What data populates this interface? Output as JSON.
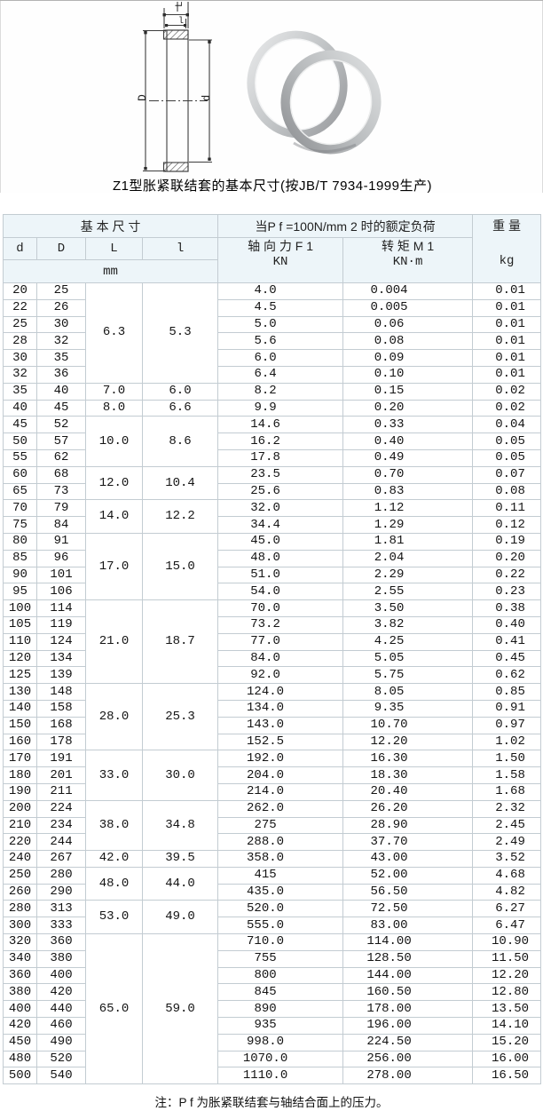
{
  "page": {
    "title": "Z1型胀紧联结套的基本尺寸(按JB/T 7934-1999生产)",
    "note": "注：P f 为胀紧联结套与轴结合面上的压力。"
  },
  "diagram": {
    "dim_L": "L",
    "dim_l": "l",
    "dim_D": "D",
    "dim_d": "d"
  },
  "table": {
    "header": {
      "basic_dims": "基 本 尺 寸",
      "load_title": "当P f =100N/mm 2 时的额定负荷",
      "weight": "重 量",
      "weight_unit": "kg",
      "col_d": "d",
      "col_D": "D",
      "col_L": "L",
      "col_l": "l",
      "unit_mm": "mm",
      "axial_force": "轴 向 力 F 1",
      "axial_unit": "KN",
      "torque": "转 矩 M 1",
      "torque_unit": "KN·m"
    },
    "groups": [
      {
        "L": "6.3",
        "l": "5.3",
        "rows": [
          [
            "20",
            "25",
            "4.0",
            "0.004",
            "0.01"
          ],
          [
            "22",
            "26",
            "4.5",
            "0.005",
            "0.01"
          ],
          [
            "25",
            "30",
            "5.0",
            "0.06",
            "0.01"
          ],
          [
            "28",
            "32",
            "5.6",
            "0.08",
            "0.01"
          ],
          [
            "30",
            "35",
            "6.0",
            "0.09",
            "0.01"
          ],
          [
            "32",
            "36",
            "6.4",
            "0.10",
            "0.01"
          ]
        ]
      },
      {
        "L": "7.0",
        "l": "6.0",
        "rows": [
          [
            "35",
            "40",
            "8.2",
            "0.15",
            "0.02"
          ]
        ]
      },
      {
        "L": "8.0",
        "l": "6.6",
        "rows": [
          [
            "40",
            "45",
            "9.9",
            "0.20",
            "0.02"
          ]
        ]
      },
      {
        "L": "10.0",
        "l": "8.6",
        "rows": [
          [
            "45",
            "52",
            "14.6",
            "0.33",
            "0.04"
          ],
          [
            "50",
            "57",
            "16.2",
            "0.40",
            "0.05"
          ],
          [
            "55",
            "62",
            "17.8",
            "0.49",
            "0.05"
          ]
        ]
      },
      {
        "L": "12.0",
        "l": "10.4",
        "rows": [
          [
            "60",
            "68",
            "23.5",
            "0.70",
            "0.07"
          ],
          [
            "65",
            "73",
            "25.6",
            "0.83",
            "0.08"
          ]
        ]
      },
      {
        "L": "14.0",
        "l": "12.2",
        "rows": [
          [
            "70",
            "79",
            "32.0",
            "1.12",
            "0.11"
          ],
          [
            "75",
            "84",
            "34.4",
            "1.29",
            "0.12"
          ]
        ]
      },
      {
        "L": "17.0",
        "l": "15.0",
        "rows": [
          [
            "80",
            "91",
            "45.0",
            "1.81",
            "0.19"
          ],
          [
            "85",
            "96",
            "48.0",
            "2.04",
            "0.20"
          ],
          [
            "90",
            "101",
            "51.0",
            "2.29",
            "0.22"
          ],
          [
            "95",
            "106",
            "54.0",
            "2.55",
            "0.23"
          ]
        ]
      },
      {
        "L": "21.0",
        "l": "18.7",
        "rows": [
          [
            "100",
            "114",
            "70.0",
            "3.50",
            "0.38"
          ],
          [
            "105",
            "119",
            "73.2",
            "3.82",
            "0.40"
          ],
          [
            "110",
            "124",
            "77.0",
            "4.25",
            "0.41"
          ],
          [
            "120",
            "134",
            "84.0",
            "5.05",
            "0.45"
          ],
          [
            "125",
            "139",
            "92.0",
            "5.75",
            "0.62"
          ]
        ]
      },
      {
        "L": "28.0",
        "l": "25.3",
        "rows": [
          [
            "130",
            "148",
            "124.0",
            "8.05",
            "0.85"
          ],
          [
            "140",
            "158",
            "134.0",
            "9.35",
            "0.91"
          ],
          [
            "150",
            "168",
            "143.0",
            "10.70",
            "0.97"
          ],
          [
            "160",
            "178",
            "152.5",
            "12.20",
            "1.02"
          ]
        ]
      },
      {
        "L": "33.0",
        "l": "30.0",
        "rows": [
          [
            "170",
            "191",
            "192.0",
            "16.30",
            "1.50"
          ],
          [
            "180",
            "201",
            "204.0",
            "18.30",
            "1.58"
          ],
          [
            "190",
            "211",
            "214.0",
            "20.40",
            "1.68"
          ]
        ]
      },
      {
        "L": "38.0",
        "l": "34.8",
        "rows": [
          [
            "200",
            "224",
            "262.0",
            "26.20",
            "2.32"
          ],
          [
            "210",
            "234",
            "275",
            "28.90",
            "2.45"
          ],
          [
            "220",
            "244",
            "288.0",
            "37.70",
            "2.49"
          ]
        ]
      },
      {
        "L": "42.0",
        "l": "39.5",
        "rows": [
          [
            "240",
            "267",
            "358.0",
            "43.00",
            "3.52"
          ]
        ]
      },
      {
        "L": "48.0",
        "l": "44.0",
        "rows": [
          [
            "250",
            "280",
            "415",
            "52.00",
            "4.68"
          ],
          [
            "260",
            "290",
            "435.0",
            "56.50",
            "4.82"
          ]
        ]
      },
      {
        "L": "53.0",
        "l": "49.0",
        "rows": [
          [
            "280",
            "313",
            "520.0",
            "72.50",
            "6.27"
          ],
          [
            "300",
            "333",
            "555.0",
            "83.00",
            "6.47"
          ]
        ]
      },
      {
        "L": "65.0",
        "l": "59.0",
        "rows": [
          [
            "320",
            "360",
            "710.0",
            "114.00",
            "10.90"
          ],
          [
            "340",
            "380",
            "755",
            "128.50",
            "11.50"
          ],
          [
            "360",
            "400",
            "800",
            "144.00",
            "12.20"
          ],
          [
            "380",
            "420",
            "845",
            "160.50",
            "12.80"
          ],
          [
            "400",
            "440",
            "890",
            "178.00",
            "13.50"
          ],
          [
            "420",
            "460",
            "935",
            "196.00",
            "14.10"
          ],
          [
            "450",
            "490",
            "998.0",
            "224.50",
            "15.20"
          ],
          [
            "480",
            "520",
            "1070.0",
            "256.00",
            "16.00"
          ],
          [
            "500",
            "540",
            "1110.0",
            "278.00",
            "16.50"
          ]
        ]
      }
    ]
  }
}
